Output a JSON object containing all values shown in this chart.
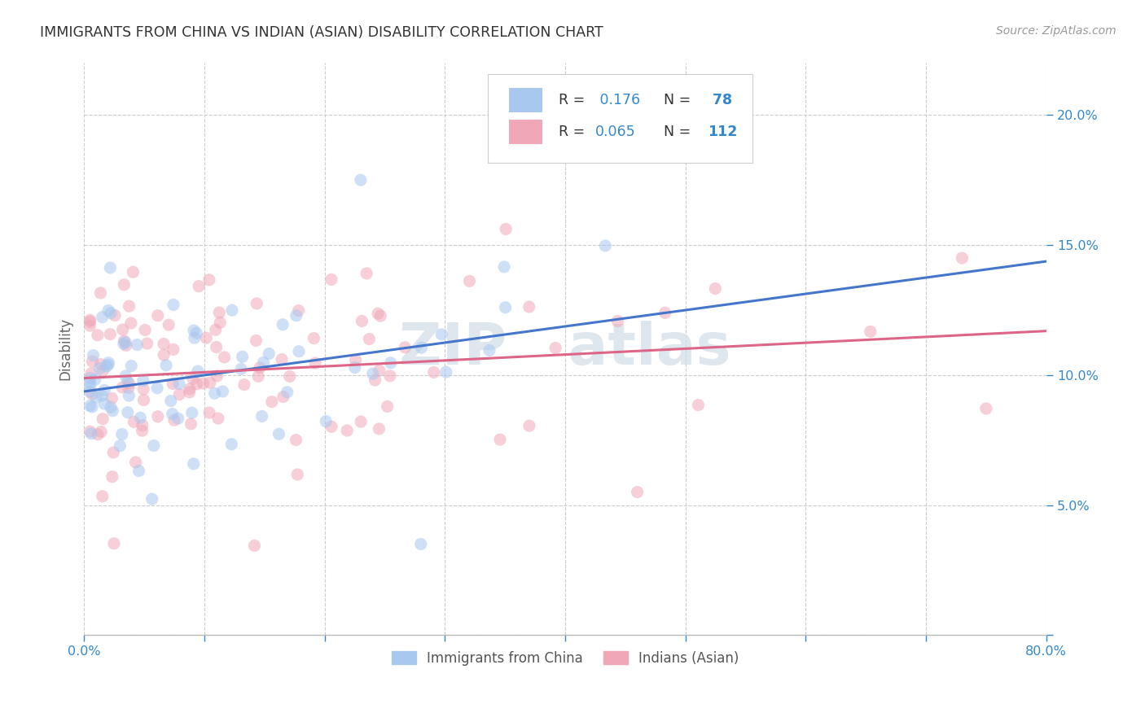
{
  "title": "IMMIGRANTS FROM CHINA VS INDIAN (ASIAN) DISABILITY CORRELATION CHART",
  "source": "Source: ZipAtlas.com",
  "ylabel": "Disability",
  "xlim": [
    0.0,
    0.8
  ],
  "ylim": [
    0.0,
    0.22
  ],
  "x_ticks": [
    0.0,
    0.1,
    0.2,
    0.3,
    0.4,
    0.5,
    0.6,
    0.7,
    0.8
  ],
  "y_ticks": [
    0.0,
    0.05,
    0.1,
    0.15,
    0.2
  ],
  "china_color": "#a8c8f0",
  "india_color": "#f0a8b8",
  "china_line_color": "#4477cc",
  "india_line_color": "#dd6688",
  "china_R": 0.176,
  "china_N": 78,
  "india_R": 0.065,
  "india_N": 112,
  "grid_color": "#cccccc",
  "watermark_color": "#d0dce8",
  "title_color": "#333333",
  "source_color": "#999999",
  "ylabel_color": "#666666",
  "tick_color": "#3388cc",
  "legend_edge_color": "#cccccc",
  "scatter_size": 120,
  "scatter_alpha": 0.55
}
